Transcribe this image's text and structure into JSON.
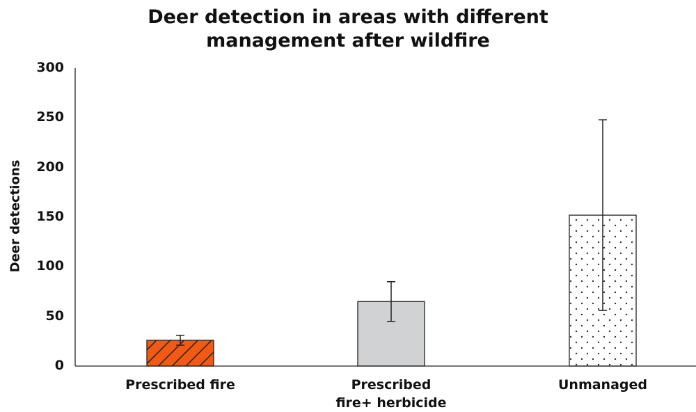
{
  "chart_data": {
    "type": "bar",
    "title": "Deer detection in areas with different\nmanagement after wildfire",
    "y_label": "Deer detections",
    "categories": [
      "Prescribed fire",
      "Prescribed\nfire+ herbicide",
      "Unmanaged"
    ],
    "values": [
      26,
      65,
      152
    ],
    "errors": [
      5,
      20,
      96
    ],
    "colors": [
      "#f05a12",
      "#d1d2d4",
      "#ffffff"
    ],
    "patterns": [
      "hatch",
      "solid",
      "dots"
    ],
    "ylim": [
      0,
      300
    ],
    "yticks": [
      0,
      50,
      100,
      150,
      200,
      250,
      300
    ],
    "grid": false
  }
}
